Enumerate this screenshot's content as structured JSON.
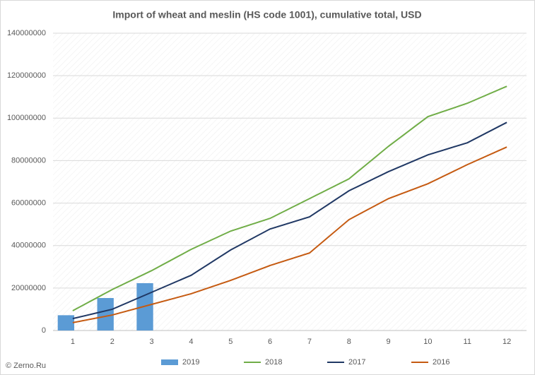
{
  "chart_data": {
    "type": "line",
    "title": "Import of wheat and meslin (HS code 1001), cumulative total, USD",
    "annotation": "© Zerno.Ru",
    "categories": [
      "1",
      "2",
      "3",
      "4",
      "5",
      "6",
      "7",
      "8",
      "9",
      "10",
      "11",
      "12"
    ],
    "series": [
      {
        "name": "2019",
        "type": "bar",
        "color": "#5b9bd5",
        "values": [
          7200000,
          15300000,
          22300000,
          null,
          null,
          null,
          null,
          null,
          null,
          null,
          null,
          null
        ]
      },
      {
        "name": "2018",
        "type": "line",
        "color": "#70ad47",
        "values": [
          9300000,
          19300000,
          28200000,
          38200000,
          46800000,
          52800000,
          62100000,
          71400000,
          86700000,
          100700000,
          107000000,
          115000000
        ]
      },
      {
        "name": "2017",
        "type": "line",
        "color": "#203864",
        "values": [
          5600000,
          10000000,
          18000000,
          26000000,
          37900000,
          47800000,
          53500000,
          65800000,
          74800000,
          82700000,
          88400000,
          98000000
        ]
      },
      {
        "name": "2016",
        "type": "line",
        "color": "#c55a11",
        "values": [
          3700000,
          7300000,
          12300000,
          17300000,
          23600000,
          30600000,
          36500000,
          52200000,
          62100000,
          69100000,
          78100000,
          86400000
        ]
      }
    ],
    "ylim": [
      0,
      140000000
    ],
    "yticks": [
      0,
      20000000,
      40000000,
      60000000,
      80000000,
      100000000,
      120000000,
      140000000
    ],
    "grid": true,
    "legend": "bottom"
  }
}
